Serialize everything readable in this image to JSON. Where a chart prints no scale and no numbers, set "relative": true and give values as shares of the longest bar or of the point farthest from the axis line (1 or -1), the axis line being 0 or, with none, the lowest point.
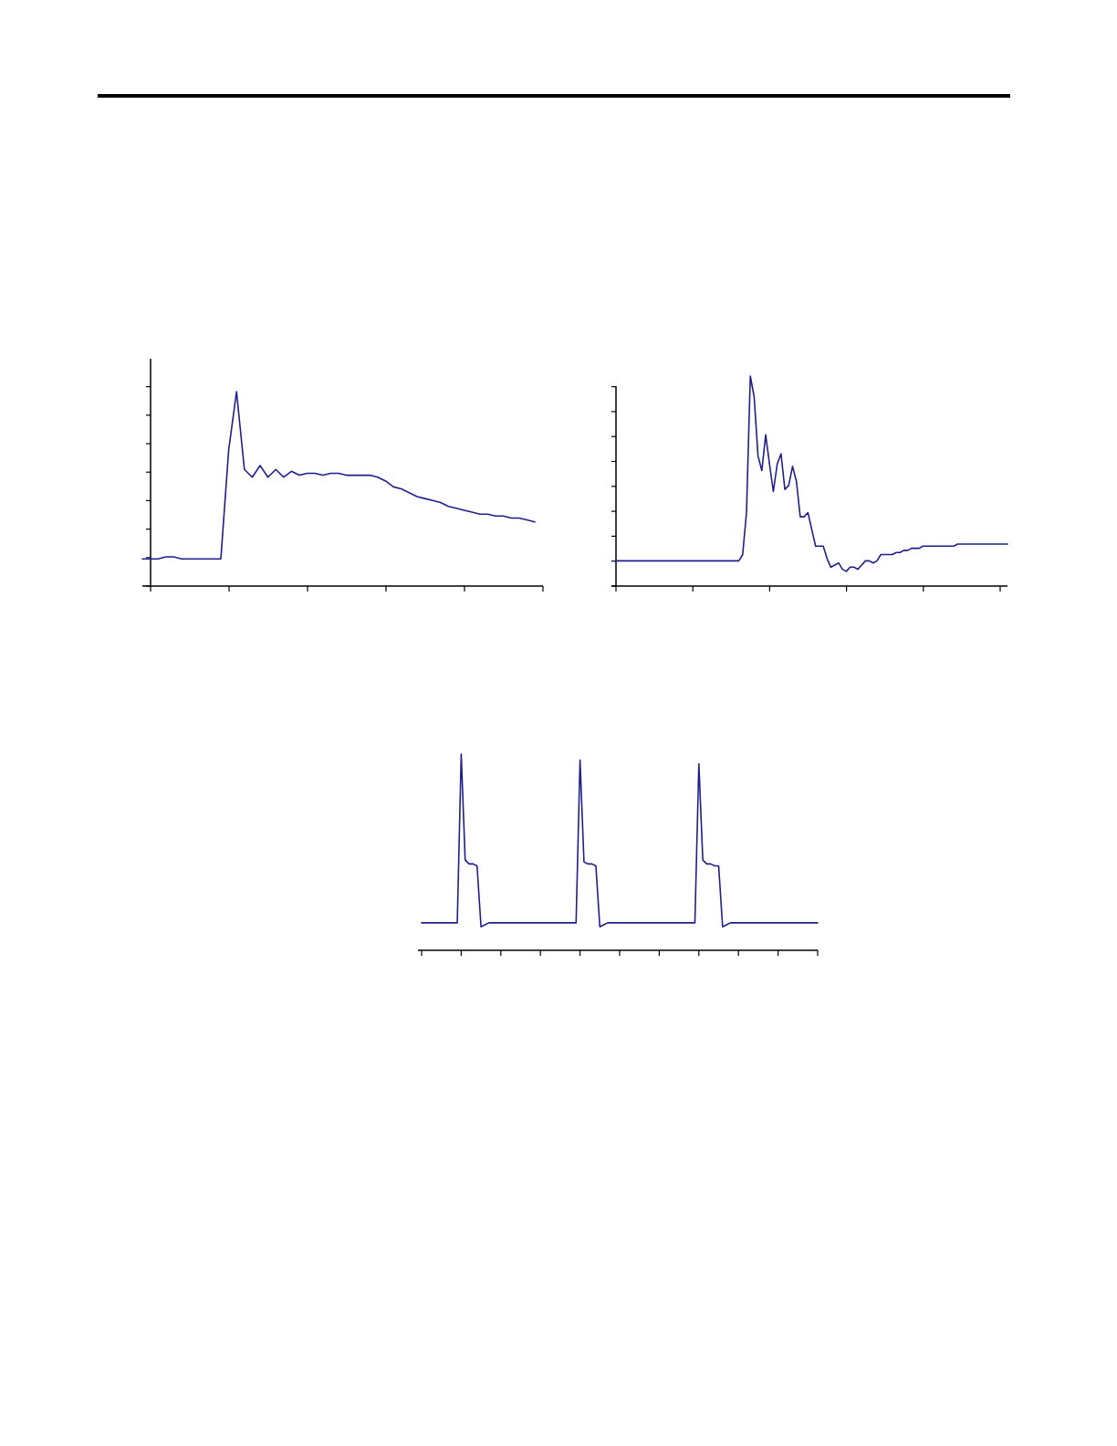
{
  "chart_data": [
    {
      "type": "line",
      "relative": true,
      "categories": [
        null,
        null,
        null,
        null,
        null,
        null,
        null,
        null,
        null,
        null,
        null,
        null,
        null,
        null,
        null,
        null,
        null,
        null,
        null,
        null,
        null,
        null,
        null,
        null,
        null,
        null,
        null,
        null,
        null,
        null,
        null,
        null,
        null,
        null,
        null,
        null,
        null,
        null,
        null,
        null,
        null,
        null,
        null,
        null,
        null,
        null,
        null,
        null,
        null,
        null,
        null
      ],
      "series": [
        {
          "color": "#1f1f8c",
          "values": [
            0.14,
            0.14,
            0.14,
            0.15,
            0.15,
            0.14,
            0.14,
            0.14,
            0.14,
            0.14,
            0.14,
            0.7,
            1,
            0.6,
            0.56,
            0.62,
            0.56,
            0.6,
            0.56,
            0.59,
            0.57,
            0.58,
            0.58,
            0.57,
            0.58,
            0.58,
            0.57,
            0.57,
            0.57,
            0.57,
            0.56,
            0.54,
            0.51,
            0.5,
            0.48,
            0.46,
            0.45,
            0.44,
            0.43,
            0.41,
            0.4,
            0.39,
            0.38,
            0.37,
            0.37,
            0.36,
            0.36,
            0.35,
            0.35,
            0.34,
            0.33
          ]
        }
      ]
    },
    {
      "type": "line",
      "relative": true,
      "categories": [
        null,
        null,
        null,
        null,
        null,
        null,
        null,
        null,
        null,
        null,
        null,
        null,
        null,
        null,
        null,
        null,
        null,
        null,
        null,
        null,
        null,
        null,
        null,
        null,
        null,
        null,
        null,
        null,
        null,
        null,
        null,
        null,
        null,
        null,
        null,
        null,
        null,
        null,
        null,
        null,
        null,
        null,
        null,
        null,
        null,
        null,
        null,
        null,
        null,
        null,
        null,
        null,
        null,
        null,
        null,
        null,
        null,
        null,
        null,
        null,
        null,
        null,
        null,
        null,
        null,
        null,
        null,
        null,
        null,
        null,
        null,
        null,
        null,
        null,
        null,
        null,
        null,
        null,
        null,
        null,
        null,
        null,
        null,
        null,
        null,
        null,
        null,
        null,
        null,
        null,
        null,
        null,
        null,
        null,
        null,
        null,
        null,
        null,
        null,
        null,
        null,
        null,
        null
      ],
      "series": [
        {
          "color": "#1f1f8c",
          "values": [
            0.12,
            0.12,
            0.12,
            0.12,
            0.12,
            0.12,
            0.12,
            0.12,
            0.12,
            0.12,
            0.12,
            0.12,
            0.12,
            0.12,
            0.12,
            0.12,
            0.12,
            0.12,
            0.12,
            0.12,
            0.12,
            0.12,
            0.12,
            0.12,
            0.12,
            0.12,
            0.12,
            0.12,
            0.12,
            0.12,
            0.12,
            0.12,
            0.12,
            0.15,
            0.35,
            1,
            0.9,
            0.62,
            0.55,
            0.72,
            0.58,
            0.45,
            0.58,
            0.63,
            0.46,
            0.48,
            0.57,
            0.5,
            0.33,
            0.33,
            0.35,
            0.27,
            0.19,
            0.19,
            0.19,
            0.13,
            0.09,
            0.1,
            0.11,
            0.08,
            0.07,
            0.09,
            0.09,
            0.08,
            0.1,
            0.12,
            0.12,
            0.11,
            0.12,
            0.15,
            0.15,
            0.15,
            0.15,
            0.16,
            0.16,
            0.17,
            0.17,
            0.18,
            0.18,
            0.18,
            0.19,
            0.19,
            0.19,
            0.19,
            0.19,
            0.19,
            0.19,
            0.19,
            0.19,
            0.2,
            0.2,
            0.2,
            0.2,
            0.2,
            0.2,
            0.2,
            0.2,
            0.2,
            0.2,
            0.2,
            0.2,
            0.2,
            0.2
          ]
        }
      ]
    },
    {
      "type": "line",
      "relative": true,
      "categories": [
        null,
        null,
        null,
        null,
        null,
        null,
        null,
        null,
        null,
        null,
        null,
        null,
        null,
        null,
        null,
        null,
        null,
        null,
        null,
        null,
        null,
        null,
        null,
        null,
        null,
        null,
        null,
        null,
        null,
        null,
        null,
        null,
        null,
        null,
        null,
        null,
        null,
        null,
        null,
        null,
        null,
        null,
        null,
        null,
        null,
        null,
        null,
        null,
        null,
        null,
        null,
        null,
        null,
        null,
        null,
        null,
        null,
        null,
        null,
        null,
        null,
        null,
        null,
        null,
        null,
        null,
        null,
        null,
        null,
        null,
        null,
        null,
        null,
        null,
        null,
        null,
        null,
        null,
        null,
        null,
        null,
        null,
        null,
        null,
        null,
        null,
        null,
        null,
        null,
        null,
        null,
        null,
        null,
        null,
        null,
        null,
        null,
        null,
        null,
        null,
        null
      ],
      "series": [
        {
          "color": "#1f1f8c",
          "values": [
            0.14,
            0.14,
            0.14,
            0.14,
            0.14,
            0.14,
            0.14,
            0.14,
            0.14,
            0.14,
            1,
            0.46,
            0.44,
            0.44,
            0.43,
            0.12,
            0.13,
            0.14,
            0.14,
            0.14,
            0.14,
            0.14,
            0.14,
            0.14,
            0.14,
            0.14,
            0.14,
            0.14,
            0.14,
            0.14,
            0.14,
            0.14,
            0.14,
            0.14,
            0.14,
            0.14,
            0.14,
            0.14,
            0.14,
            0.14,
            0.97,
            0.45,
            0.44,
            0.44,
            0.43,
            0.12,
            0.13,
            0.14,
            0.14,
            0.14,
            0.14,
            0.14,
            0.14,
            0.14,
            0.14,
            0.14,
            0.14,
            0.14,
            0.14,
            0.14,
            0.14,
            0.14,
            0.14,
            0.14,
            0.14,
            0.14,
            0.14,
            0.14,
            0.14,
            0.14,
            0.95,
            0.46,
            0.44,
            0.44,
            0.43,
            0.43,
            0.12,
            0.13,
            0.14,
            0.14,
            0.14,
            0.14,
            0.14,
            0.14,
            0.14,
            0.14,
            0.14,
            0.14,
            0.14,
            0.14,
            0.14,
            0.14,
            0.14,
            0.14,
            0.14,
            0.14,
            0.14,
            0.14,
            0.14,
            0.14,
            0.14
          ]
        }
      ]
    }
  ]
}
